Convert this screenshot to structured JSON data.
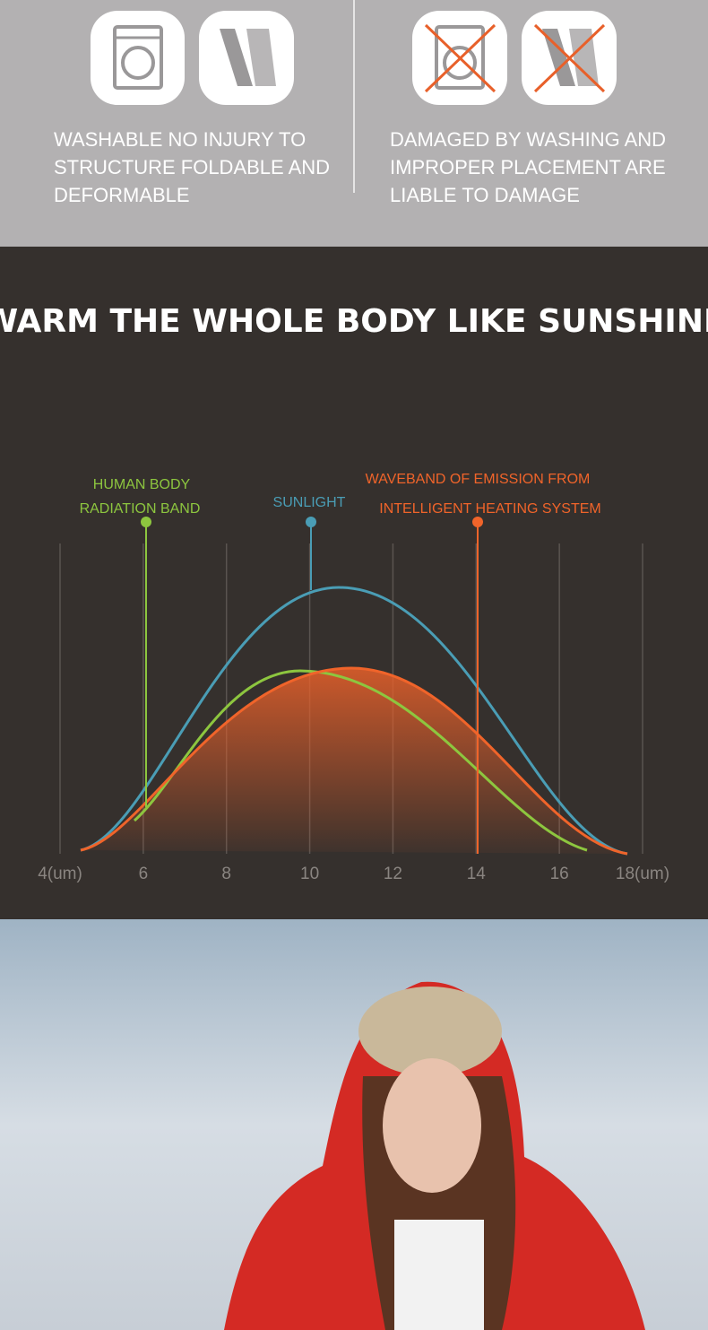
{
  "features": {
    "good": {
      "lines": [
        "WASHABLE NO INJURY TO",
        "STRUCTURE FOLDABLE AND",
        "DEFORMABLE"
      ]
    },
    "bad": {
      "lines": [
        "DAMAGED BY WASHING AND",
        "IMPROPER PLACEMENT ARE",
        "LIABLE TO DAMAGE"
      ]
    }
  },
  "section_title": "WARM THE WHOLE BODY LIKE SUNSHINE",
  "spectrum": {
    "human_label": [
      "HUMAN BODY",
      "RADIATION BAND"
    ],
    "sunlight_label": "SUNLIGHT",
    "heating_label": [
      "WAVEBAND OF EMISSION FROM",
      "INTELLIGENT HEATING SYSTEM"
    ],
    "axis_labels": [
      "4(um)",
      "6",
      "8",
      "10",
      "12",
      "14",
      "16",
      "18(um)"
    ]
  }
}
